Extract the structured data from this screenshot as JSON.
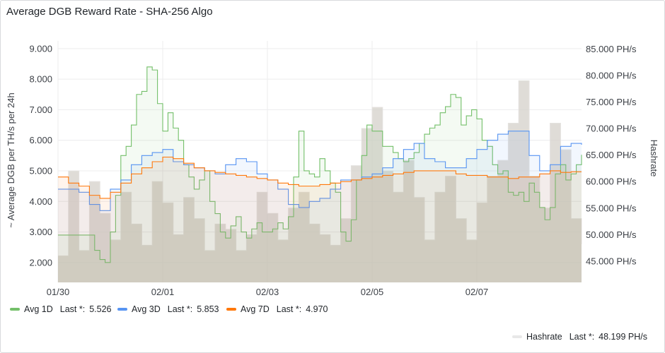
{
  "panel": {
    "title": "Average DGB Reward Rate - SHA-256 Algo"
  },
  "legend": [
    {
      "name": "Avg 1D",
      "last_label": "Last *:",
      "last_value": "5.526",
      "color": "#73bf69"
    },
    {
      "name": "Avg 3D",
      "last_label": "Last *:",
      "last_value": "5.853",
      "color": "#5794f2"
    },
    {
      "name": "Avg 7D",
      "last_label": "Last *:",
      "last_value": "4.970",
      "color": "#ff780a"
    },
    {
      "name": "Hashrate",
      "last_label": "Last *:",
      "last_value": "48.199 PH/s",
      "color": "#e8e8e8"
    }
  ],
  "chart_data": {
    "type": "line",
    "ylabel": "~ Average DGB per TH/s per 24h",
    "y2label": "Hashrate",
    "x_ticks": [
      "01/30",
      "02/01",
      "02/03",
      "02/05",
      "02/07"
    ],
    "x_range": [
      0,
      10
    ],
    "x_tick_positions": [
      0,
      2,
      4,
      6,
      8
    ],
    "ylim": [
      1.35,
      9.25
    ],
    "y_ticks": [
      "2.000",
      "3.000",
      "4.000",
      "5.000",
      "6.000",
      "7.000",
      "8.000",
      "9.000"
    ],
    "y_tick_values": [
      2,
      3,
      4,
      5,
      6,
      7,
      8,
      9
    ],
    "y2lim": [
      41000,
      86500
    ],
    "y2_ticks": [
      "45.000 PH/s",
      "50.000 PH/s",
      "55.000 PH/s",
      "60.000 PH/s",
      "65.000 PH/s",
      "70.000 PH/s",
      "75.000 PH/s",
      "80.000 PH/s",
      "85.000 PH/s"
    ],
    "y2_tick_values": [
      45000,
      50000,
      55000,
      60000,
      65000,
      70000,
      75000,
      80000,
      85000
    ],
    "grid": true,
    "series": [
      {
        "name": "Avg 1D",
        "axis": "left",
        "color": "#73bf69",
        "x": [
          0,
          0.3,
          0.5,
          0.7,
          0.8,
          0.9,
          1.0,
          1.1,
          1.2,
          1.3,
          1.4,
          1.5,
          1.6,
          1.7,
          1.8,
          1.9,
          2.0,
          2.1,
          2.2,
          2.3,
          2.4,
          2.5,
          2.6,
          2.7,
          2.8,
          2.9,
          3.0,
          3.1,
          3.2,
          3.3,
          3.4,
          3.5,
          3.6,
          3.7,
          3.8,
          3.9,
          4.0,
          4.1,
          4.2,
          4.3,
          4.4,
          4.5,
          4.6,
          4.7,
          4.8,
          4.9,
          5.0,
          5.1,
          5.2,
          5.3,
          5.4,
          5.5,
          5.6,
          5.7,
          5.8,
          5.9,
          6.0,
          6.1,
          6.2,
          6.3,
          6.4,
          6.5,
          6.6,
          6.7,
          6.8,
          6.9,
          7.0,
          7.1,
          7.2,
          7.3,
          7.4,
          7.5,
          7.6,
          7.7,
          7.8,
          7.9,
          8.0,
          8.1,
          8.2,
          8.3,
          8.4,
          8.5,
          8.6,
          8.7,
          8.8,
          8.9,
          9.0,
          9.1,
          9.2,
          9.3,
          9.4,
          9.5,
          9.6,
          9.7,
          9.8,
          9.9,
          10.0
        ],
        "values": [
          2.9,
          2.9,
          2.9,
          2.4,
          2.1,
          2.0,
          3.0,
          4.2,
          5.5,
          5.8,
          6.5,
          7.5,
          7.6,
          8.4,
          8.3,
          7.2,
          6.3,
          6.9,
          6.4,
          6.0,
          5.2,
          4.8,
          4.4,
          4.7,
          5.0,
          4.0,
          3.6,
          3.0,
          2.8,
          3.2,
          3.5,
          3.0,
          2.8,
          3.1,
          3.3,
          3.0,
          3.0,
          3.1,
          3.3,
          3.1,
          3.5,
          4.8,
          6.3,
          5.0,
          4.9,
          4.8,
          5.4,
          5.0,
          4.6,
          4.3,
          3.0,
          2.7,
          3.4,
          4.7,
          5.5,
          6.5,
          6.3,
          6.3,
          5.8,
          5.8,
          5.6,
          5.4,
          5.3,
          5.4,
          5.6,
          5.9,
          6.2,
          6.4,
          6.5,
          6.9,
          7.1,
          7.5,
          7.4,
          6.5,
          6.8,
          7.0,
          6.7,
          6.0,
          5.8,
          5.2,
          4.9,
          5.0,
          4.3,
          4.2,
          4.3,
          4.0,
          4.6,
          4.3,
          3.8,
          3.4,
          3.8,
          4.9,
          5.2,
          4.7,
          4.9,
          5.2,
          5.526
        ]
      },
      {
        "name": "Avg 3D",
        "axis": "left",
        "color": "#5794f2",
        "x": [
          0,
          0.2,
          0.4,
          0.6,
          0.8,
          1.0,
          1.2,
          1.4,
          1.6,
          1.8,
          2.0,
          2.2,
          2.4,
          2.6,
          2.8,
          3.0,
          3.2,
          3.4,
          3.6,
          3.8,
          4.0,
          4.2,
          4.4,
          4.6,
          4.8,
          5.0,
          5.2,
          5.4,
          5.6,
          5.8,
          6.0,
          6.2,
          6.4,
          6.6,
          6.8,
          7.0,
          7.2,
          7.4,
          7.6,
          7.8,
          8.0,
          8.2,
          8.4,
          8.6,
          8.8,
          9.0,
          9.2,
          9.4,
          9.6,
          9.8,
          10.0
        ],
        "values": [
          4.4,
          4.4,
          4.3,
          3.9,
          3.7,
          4.4,
          4.7,
          5.2,
          5.5,
          5.6,
          5.7,
          5.3,
          5.2,
          5.1,
          5.0,
          4.9,
          5.2,
          5.4,
          5.3,
          4.9,
          4.7,
          4.4,
          3.9,
          3.8,
          4.0,
          4.1,
          4.4,
          4.7,
          4.7,
          4.8,
          4.9,
          5.1,
          5.4,
          5.7,
          5.9,
          5.4,
          5.3,
          5.1,
          5.1,
          5.4,
          5.7,
          6.0,
          6.2,
          6.3,
          6.3,
          5.5,
          5.0,
          5.2,
          5.8,
          5.9,
          5.853
        ]
      },
      {
        "name": "Avg 7D",
        "axis": "left",
        "color": "#ff780a",
        "x": [
          0,
          0.2,
          0.4,
          0.6,
          0.8,
          1.0,
          1.2,
          1.4,
          1.6,
          1.8,
          2.0,
          2.2,
          2.4,
          2.6,
          2.8,
          3.0,
          3.2,
          3.4,
          3.6,
          3.8,
          4.0,
          4.2,
          4.4,
          4.6,
          4.8,
          5.0,
          5.2,
          5.4,
          5.6,
          5.8,
          6.0,
          6.2,
          6.4,
          6.6,
          6.8,
          7.0,
          7.2,
          7.4,
          7.6,
          7.8,
          8.0,
          8.2,
          8.4,
          8.6,
          8.8,
          9.0,
          9.2,
          9.4,
          9.6,
          9.8,
          10.0
        ],
        "values": [
          4.8,
          4.6,
          4.5,
          4.2,
          4.1,
          4.3,
          4.6,
          4.9,
          5.1,
          5.3,
          5.45,
          5.4,
          5.25,
          5.1,
          5.0,
          4.95,
          4.9,
          4.85,
          4.8,
          4.75,
          4.7,
          4.6,
          4.55,
          4.5,
          4.5,
          4.55,
          4.6,
          4.65,
          4.7,
          4.75,
          4.8,
          4.85,
          4.9,
          4.95,
          5.0,
          5.0,
          5.0,
          5.0,
          4.9,
          4.85,
          4.85,
          4.8,
          4.8,
          4.75,
          4.8,
          4.8,
          4.9,
          5.0,
          4.95,
          4.97,
          4.97
        ]
      },
      {
        "name": "Hashrate",
        "axis": "right",
        "color": "#d4d0ca",
        "x": [
          0,
          0.2,
          0.4,
          0.6,
          0.8,
          1.0,
          1.2,
          1.4,
          1.6,
          1.8,
          2.0,
          2.2,
          2.4,
          2.6,
          2.8,
          3.0,
          3.2,
          3.4,
          3.6,
          3.8,
          4.0,
          4.2,
          4.4,
          4.6,
          4.8,
          5.0,
          5.2,
          5.4,
          5.6,
          5.8,
          6.0,
          6.2,
          6.4,
          6.6,
          6.8,
          7.0,
          7.2,
          7.4,
          7.6,
          7.8,
          8.0,
          8.2,
          8.4,
          8.6,
          8.8,
          9.0,
          9.2,
          9.4,
          9.6,
          9.8,
          10.0
        ],
        "values": [
          46000,
          62000,
          47000,
          60000,
          54000,
          49000,
          58000,
          52000,
          48000,
          60000,
          56000,
          50000,
          57000,
          53000,
          47000,
          52000,
          51000,
          47000,
          50000,
          58000,
          54000,
          49000,
          55000,
          58000,
          52000,
          50000,
          48000,
          53000,
          63000,
          70000,
          74000,
          62000,
          58000,
          64000,
          57000,
          49000,
          58000,
          61000,
          53000,
          49000,
          56000,
          61000,
          64000,
          71000,
          79000,
          61000,
          55000,
          71000,
          66000,
          53000,
          48199
        ]
      }
    ]
  }
}
